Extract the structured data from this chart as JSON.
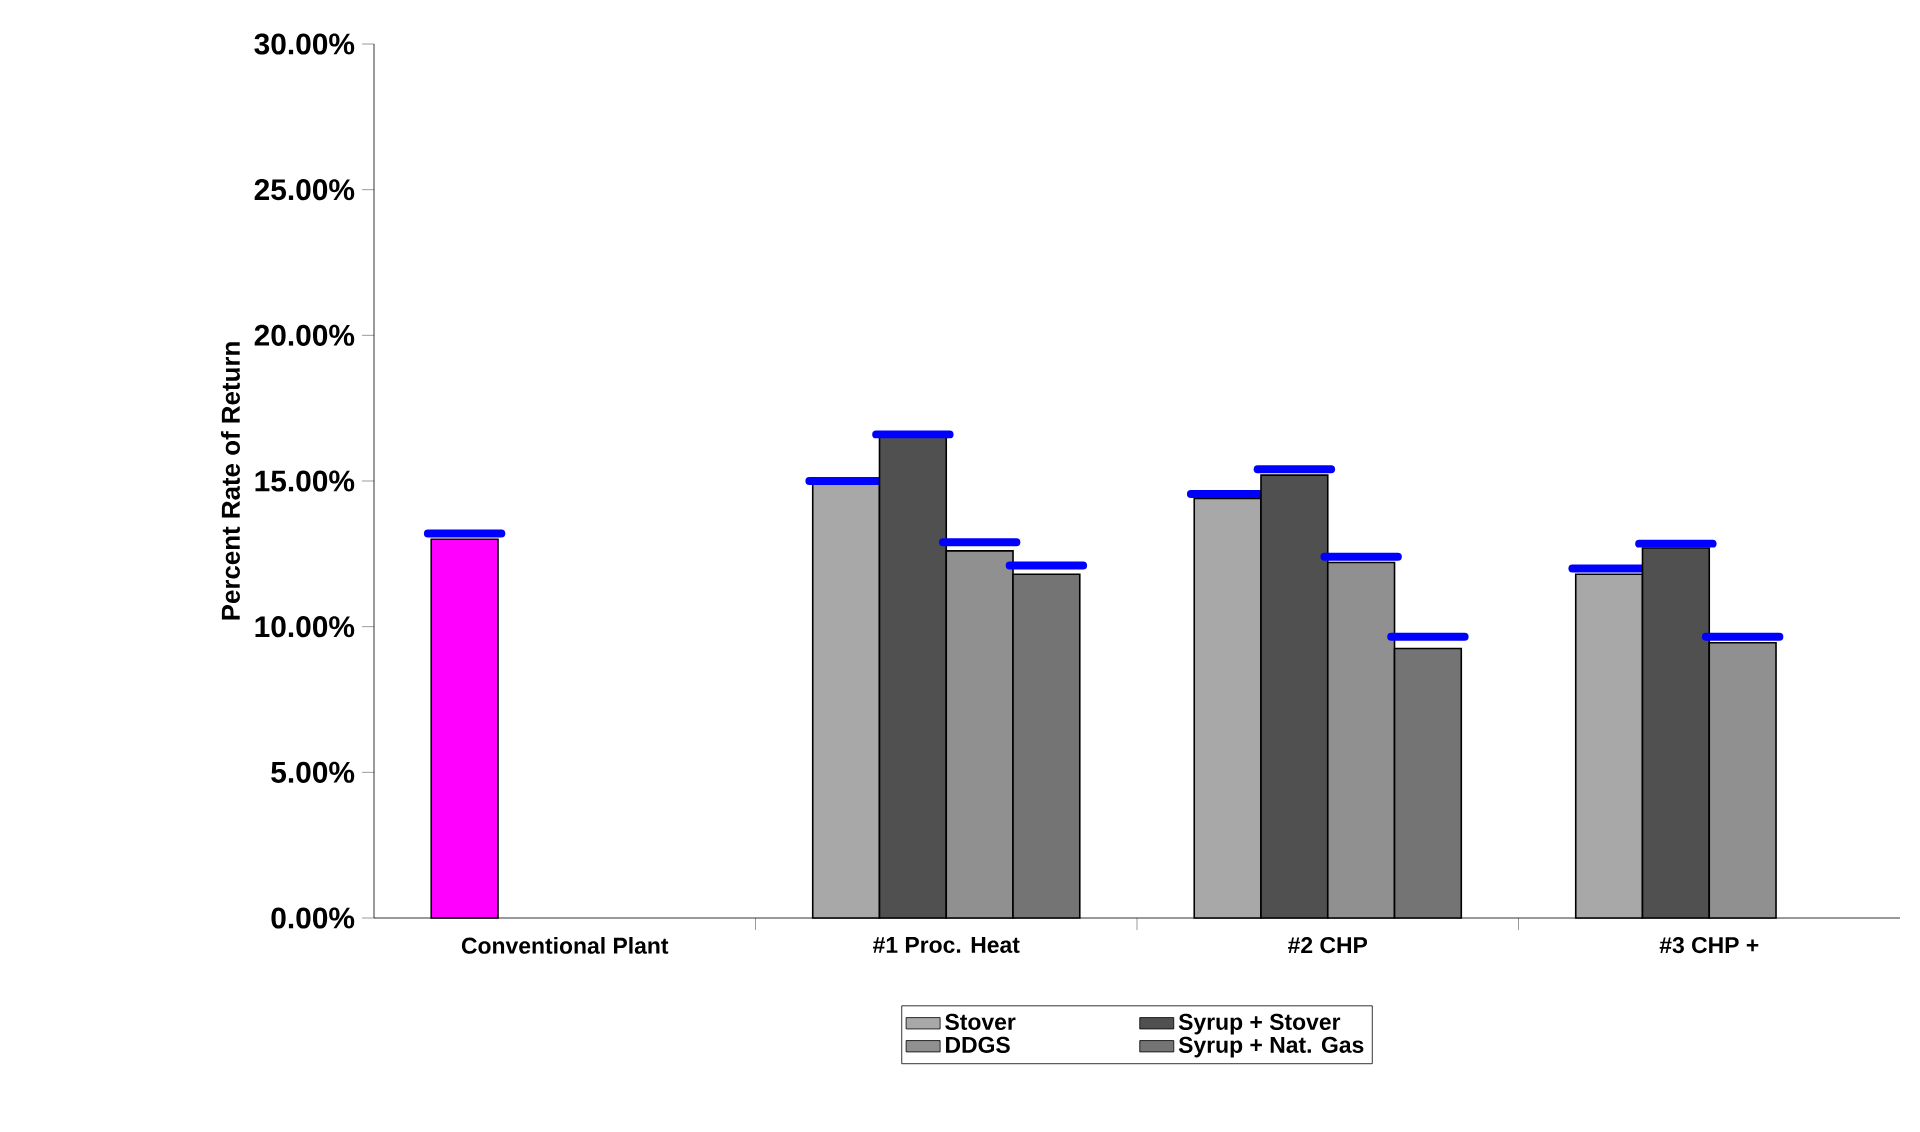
{
  "chart_data": {
    "type": "bar",
    "ylabel": "Percent Rate of Return",
    "categories": [
      "Conventional Plant",
      "#1 Proc. Heat",
      "#2 CHP",
      "#3 CHP +"
    ],
    "ylim": [
      0,
      30
    ],
    "yticks": [
      {
        "value": 0,
        "label": "0.00%"
      },
      {
        "value": 5,
        "label": "5.00%"
      },
      {
        "value": 10,
        "label": "10.00%"
      },
      {
        "value": 15,
        "label": "15.00%"
      },
      {
        "value": 20,
        "label": "20.00%"
      },
      {
        "value": 25,
        "label": "25.00%"
      },
      {
        "value": 30,
        "label": "30.00%"
      }
    ],
    "legend": "bottom",
    "series": [
      {
        "name": "Stover",
        "color": "#a8a8a8",
        "colors": [
          "#ff00ff",
          "#a8a8a8",
          "#a8a8a8",
          "#a8a8a8"
        ],
        "values": [
          13.0,
          14.9,
          14.4,
          11.8
        ],
        "errors": [
          [
            13.2,
            13.2
          ],
          [
            15.0,
            15.0
          ],
          [
            14.55,
            14.55
          ],
          [
            12.0,
            12.0
          ]
        ]
      },
      {
        "name": "Syrup + Stover",
        "color": "#505050",
        "values": [
          null,
          16.5,
          15.2,
          12.7
        ],
        "errors": [
          null,
          [
            16.6,
            16.6
          ],
          [
            15.4,
            15.4
          ],
          [
            12.85,
            12.85
          ]
        ]
      },
      {
        "name": "DDGS",
        "color": "#909090",
        "values": [
          null,
          12.6,
          12.2,
          9.45
        ],
        "errors": [
          null,
          [
            12.9,
            12.9
          ],
          [
            12.4,
            12.4
          ],
          [
            9.65,
            9.65
          ]
        ]
      },
      {
        "name": "Syrup + Nat. Gas",
        "color": "#747474",
        "values": [
          null,
          11.8,
          9.25,
          null
        ],
        "errors": [
          null,
          [
            12.1,
            12.1
          ],
          [
            9.65,
            9.65
          ],
          null
        ]
      }
    ]
  }
}
